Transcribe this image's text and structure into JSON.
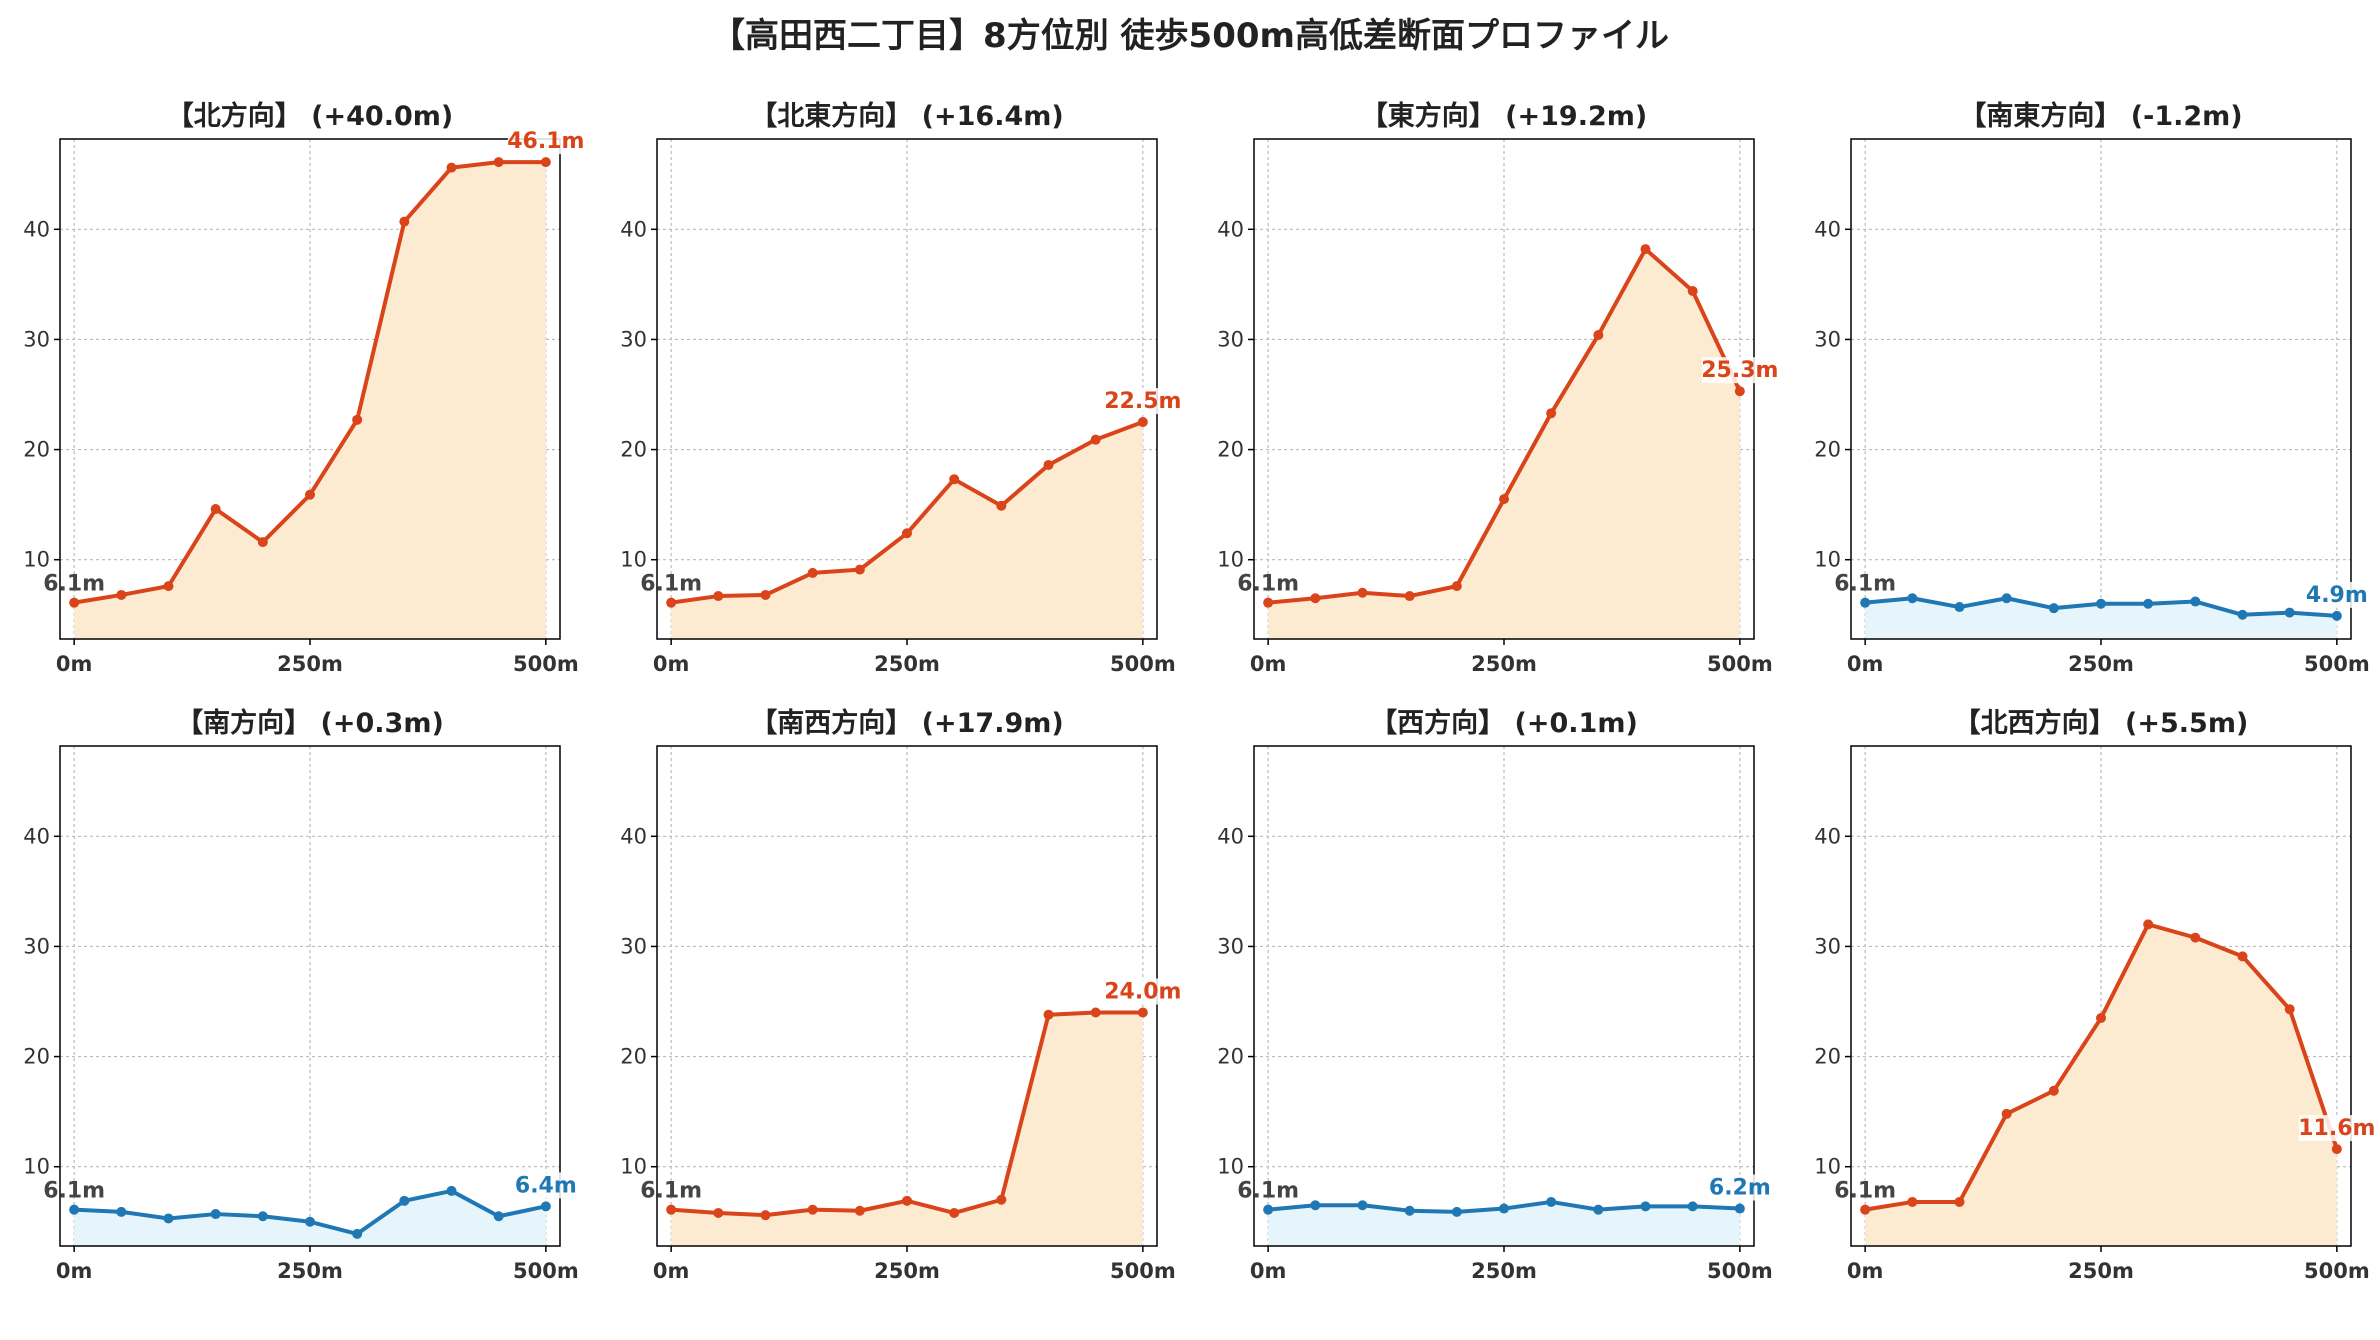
{
  "title": "【高田西二丁目】8方位別 徒歩500m高低差断面プロファイル",
  "colors": {
    "up_line": "#d9441a",
    "up_fill": "#fdebd1",
    "down_line": "#1f78b4",
    "down_fill": "#e6f5fb",
    "start_label": "#444444",
    "grid": "#bbbbbb"
  },
  "chart_data": [
    {
      "type": "line",
      "title": "【北方向】 (+40.0m)",
      "trend": "up",
      "x": [
        0,
        50,
        100,
        150,
        200,
        250,
        300,
        350,
        400,
        450,
        500
      ],
      "values": [
        6.1,
        6.8,
        7.6,
        14.6,
        11.6,
        15.9,
        22.7,
        40.7,
        45.6,
        46.1,
        46.1
      ],
      "start_label": "6.1m",
      "end_label": "46.1m"
    },
    {
      "type": "line",
      "title": "【北東方向】 (+16.4m)",
      "trend": "up",
      "x": [
        0,
        50,
        100,
        150,
        200,
        250,
        300,
        350,
        400,
        450,
        500
      ],
      "values": [
        6.1,
        6.7,
        6.8,
        8.8,
        9.1,
        12.4,
        17.3,
        14.9,
        18.6,
        20.9,
        22.5
      ],
      "start_label": "6.1m",
      "end_label": "22.5m"
    },
    {
      "type": "line",
      "title": "【東方向】 (+19.2m)",
      "trend": "up",
      "x": [
        0,
        50,
        100,
        150,
        200,
        250,
        300,
        350,
        400,
        450,
        500
      ],
      "values": [
        6.1,
        6.5,
        7.0,
        6.7,
        7.6,
        15.5,
        23.3,
        30.4,
        38.2,
        34.4,
        25.3
      ],
      "start_label": "6.1m",
      "end_label": "25.3m"
    },
    {
      "type": "line",
      "title": "【南東方向】 (-1.2m)",
      "trend": "down",
      "x": [
        0,
        50,
        100,
        150,
        200,
        250,
        300,
        350,
        400,
        450,
        500
      ],
      "values": [
        6.1,
        6.5,
        5.7,
        6.5,
        5.6,
        6.0,
        6.0,
        6.2,
        5.0,
        5.2,
        4.9
      ],
      "start_label": "6.1m",
      "end_label": "4.9m"
    },
    {
      "type": "line",
      "title": "【南方向】 (+0.3m)",
      "trend": "down",
      "x": [
        0,
        50,
        100,
        150,
        200,
        250,
        300,
        350,
        400,
        450,
        500
      ],
      "values": [
        6.1,
        5.9,
        5.3,
        5.7,
        5.5,
        5.0,
        3.9,
        6.9,
        7.8,
        5.5,
        6.4
      ],
      "start_label": "6.1m",
      "end_label": "6.4m"
    },
    {
      "type": "line",
      "title": "【南西方向】 (+17.9m)",
      "trend": "up",
      "x": [
        0,
        50,
        100,
        150,
        200,
        250,
        300,
        350,
        400,
        450,
        500
      ],
      "values": [
        6.1,
        5.8,
        5.6,
        6.1,
        6.0,
        6.9,
        5.8,
        7.0,
        23.8,
        24.0,
        24.0
      ],
      "start_label": "6.1m",
      "end_label": "24.0m"
    },
    {
      "type": "line",
      "title": "【西方向】 (+0.1m)",
      "trend": "down",
      "x": [
        0,
        50,
        100,
        150,
        200,
        250,
        300,
        350,
        400,
        450,
        500
      ],
      "values": [
        6.1,
        6.5,
        6.5,
        6.0,
        5.9,
        6.2,
        6.8,
        6.1,
        6.4,
        6.4,
        6.2
      ],
      "start_label": "6.1m",
      "end_label": "6.2m"
    },
    {
      "type": "line",
      "title": "【北西方向】 (+5.5m)",
      "trend": "up",
      "x": [
        0,
        50,
        100,
        150,
        200,
        250,
        300,
        350,
        400,
        450,
        500
      ],
      "values": [
        6.1,
        6.8,
        6.8,
        14.8,
        16.9,
        23.5,
        32.0,
        30.8,
        29.1,
        24.3,
        11.6
      ],
      "start_label": "6.1m",
      "end_label": "11.6m"
    }
  ],
  "axes": {
    "x_ticks": [
      "0m",
      "250m",
      "500m"
    ],
    "x_tick_values": [
      0,
      250,
      500
    ],
    "y_ticks": [
      "10",
      "20",
      "30",
      "40"
    ],
    "y_tick_values": [
      10,
      20,
      30,
      40
    ],
    "xlim": [
      -15,
      515
    ],
    "ylim": [
      2.8,
      48.2
    ],
    "grid": true
  }
}
